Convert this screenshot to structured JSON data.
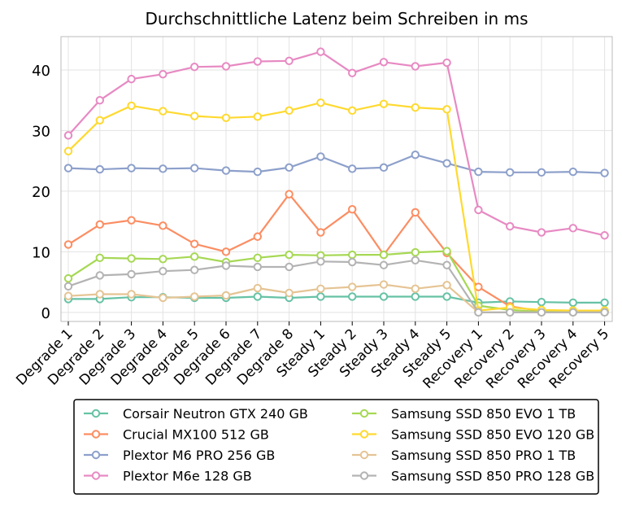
{
  "chart_data": {
    "type": "line",
    "title": "Durchschnittliche Latenz beim Schreiben in ms",
    "xlabel": "",
    "ylabel": "",
    "ylim": [
      -1.5,
      45.5
    ],
    "yticks": [
      0,
      10,
      20,
      30,
      40
    ],
    "grid": true,
    "legend_position": "bottom",
    "categories": [
      "Degrade 1",
      "Degrade 2",
      "Degrade 3",
      "Degrade 4",
      "Degrade 5",
      "Degrade 6",
      "Degrade 7",
      "Degrade 8",
      "Steady 1",
      "Steady 2",
      "Steady 3",
      "Steady 4",
      "Steady 5",
      "Recovery 1",
      "Recovery 2",
      "Recovery 3",
      "Recovery 4",
      "Recovery 5"
    ],
    "series": [
      {
        "name": "Corsair Neutron GTX 240 GB",
        "color": "#66c2a5",
        "values": [
          2.2,
          2.2,
          2.5,
          2.5,
          2.4,
          2.4,
          2.6,
          2.4,
          2.6,
          2.6,
          2.6,
          2.6,
          2.6,
          1.6,
          1.8,
          1.7,
          1.6,
          1.6
        ]
      },
      {
        "name": "Crucial MX100 512 GB",
        "color": "#fc8d62",
        "values": [
          11.2,
          14.5,
          15.2,
          14.3,
          11.3,
          10.0,
          12.5,
          19.5,
          13.2,
          17.0,
          9.5,
          16.5,
          9.8,
          4.2,
          1.0,
          0.2,
          0.2,
          0.1
        ]
      },
      {
        "name": "Plextor M6 PRO 256 GB",
        "color": "#8da0cb",
        "values": [
          23.8,
          23.6,
          23.8,
          23.7,
          23.8,
          23.4,
          23.2,
          23.9,
          25.7,
          23.7,
          23.9,
          26.0,
          24.6,
          23.2,
          23.1,
          23.1,
          23.2,
          23.0
        ]
      },
      {
        "name": "Plextor M6e 128 GB",
        "color": "#e78ac3",
        "values": [
          29.2,
          35.0,
          38.5,
          39.3,
          40.5,
          40.6,
          41.4,
          41.5,
          43.0,
          39.5,
          41.3,
          40.6,
          41.2,
          16.9,
          14.2,
          13.2,
          13.9,
          12.7
        ]
      },
      {
        "name": "Samsung SSD 850 EVO 1 TB",
        "color": "#a6d854",
        "values": [
          5.6,
          9.0,
          8.9,
          8.8,
          9.2,
          8.3,
          9.0,
          9.5,
          9.4,
          9.5,
          9.5,
          9.9,
          10.1,
          1.1,
          0.4,
          0.1,
          0.1,
          0.1
        ]
      },
      {
        "name": "Samsung SSD 850 EVO 120 GB",
        "color": "#ffd92f",
        "values": [
          26.6,
          31.7,
          34.1,
          33.2,
          32.4,
          32.1,
          32.3,
          33.3,
          34.6,
          33.3,
          34.4,
          33.8,
          33.5,
          0.3,
          0.8,
          0.4,
          0.3,
          0.3
        ]
      },
      {
        "name": "Samsung SSD 850 PRO 1 TB",
        "color": "#e5c494",
        "values": [
          2.7,
          3.0,
          3.0,
          2.4,
          2.6,
          2.8,
          4.0,
          3.2,
          3.9,
          4.2,
          4.6,
          3.9,
          4.5,
          0.0,
          0.0,
          0.0,
          0.0,
          0.0
        ]
      },
      {
        "name": "Samsung SSD 850 PRO 128 GB",
        "color": "#b3b3b3",
        "values": [
          4.3,
          6.1,
          6.3,
          6.8,
          7.0,
          7.7,
          7.5,
          7.5,
          8.4,
          8.3,
          7.8,
          8.6,
          7.8,
          0.0,
          0.0,
          0.0,
          0.0,
          0.0
        ]
      }
    ]
  }
}
